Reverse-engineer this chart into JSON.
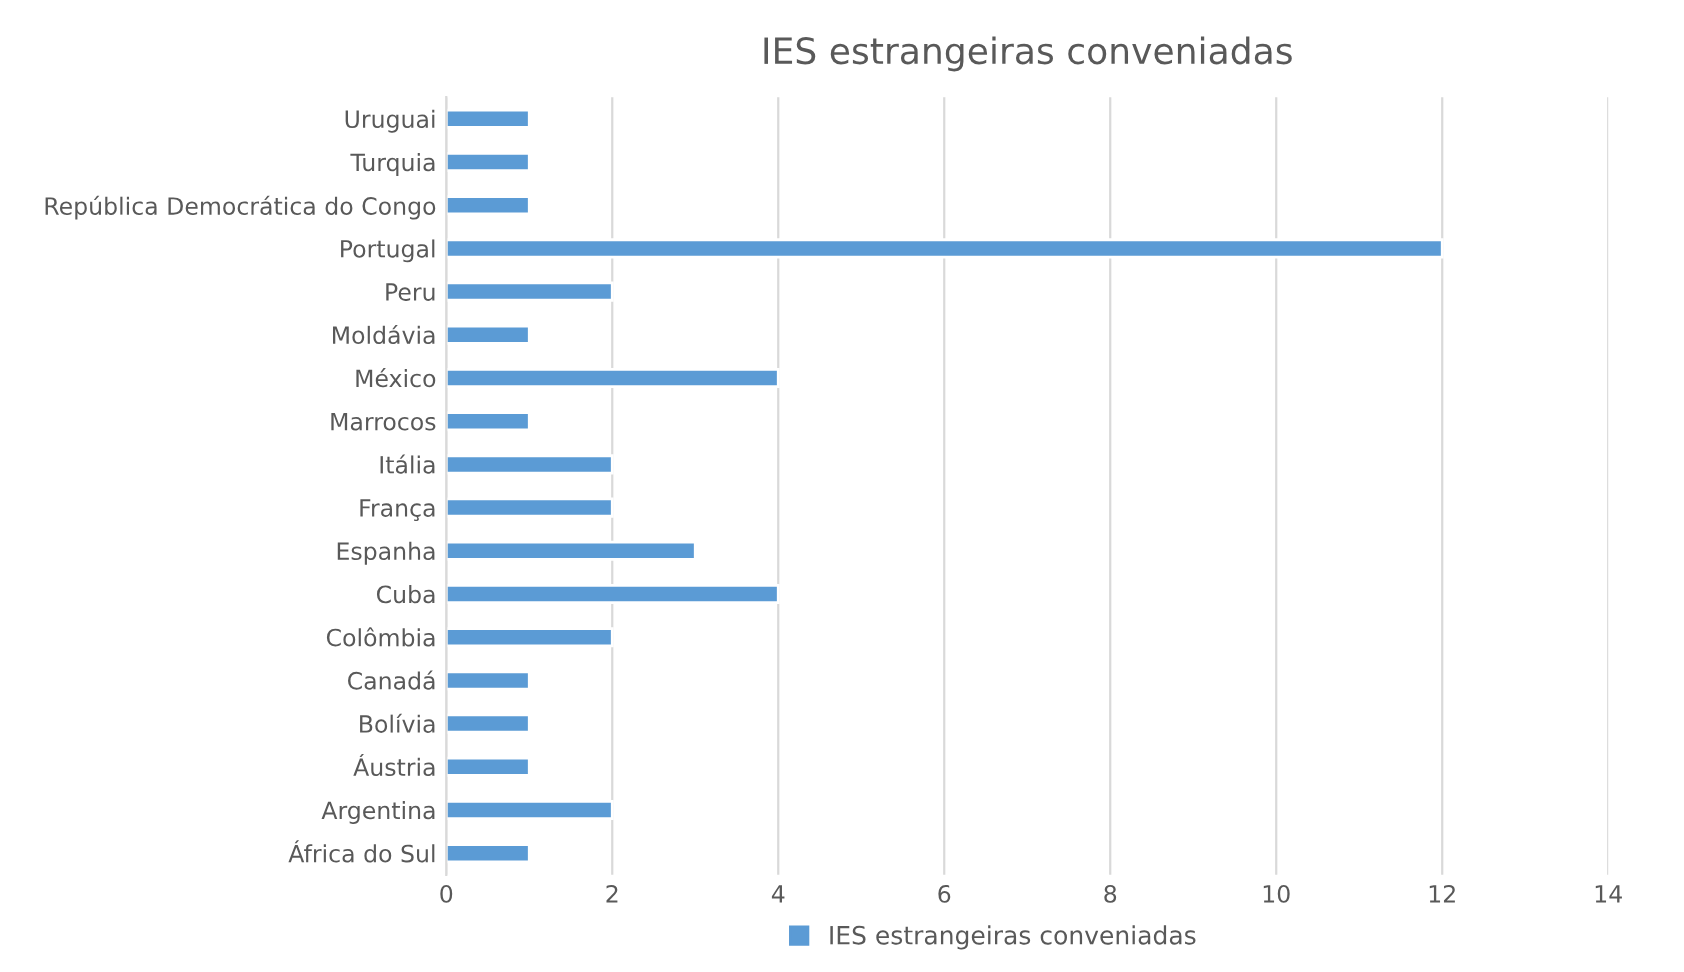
{
  "chart_data": {
    "type": "bar",
    "orientation": "horizontal",
    "title": "IES estrangeiras conveniadas",
    "categories": [
      "Uruguai",
      "Turquia",
      "República Democrática do Congo",
      "Portugal",
      "Peru",
      "Moldávia",
      "México",
      "Marrocos",
      "Itália",
      "França",
      "Espanha",
      "Cuba",
      "Colômbia",
      "Canadá",
      "Bolívia",
      "Áustria",
      "Argentina",
      "África do Sul"
    ],
    "series": [
      {
        "name": "IES estrangeiras conveniadas",
        "color": "#5b9bd5",
        "values": [
          1,
          1,
          1,
          12,
          2,
          1,
          4,
          1,
          2,
          2,
          3,
          4,
          2,
          1,
          1,
          1,
          2,
          1
        ]
      }
    ],
    "xlim": [
      0,
      14
    ],
    "xticks": [
      0,
      2,
      4,
      6,
      8,
      10,
      12,
      14
    ],
    "grid": "x",
    "legend": "bottom"
  }
}
